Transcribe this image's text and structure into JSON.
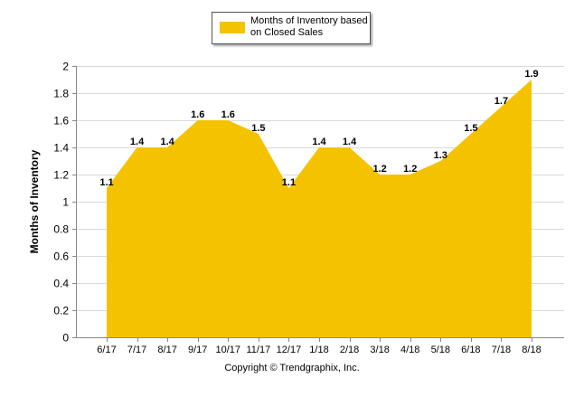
{
  "chart_data": {
    "type": "area",
    "categories": [
      "6/17",
      "7/17",
      "8/17",
      "9/17",
      "10/17",
      "11/17",
      "12/17",
      "1/18",
      "2/18",
      "3/18",
      "4/18",
      "5/18",
      "6/18",
      "7/18",
      "8/18"
    ],
    "series": [
      {
        "name": "Months of Inventory based on Closed Sales",
        "values": [
          1.1,
          1.4,
          1.4,
          1.6,
          1.6,
          1.5,
          1.1,
          1.4,
          1.4,
          1.2,
          1.2,
          1.3,
          1.5,
          1.7,
          1.9
        ],
        "labels": [
          "1.1",
          "1.4",
          "1.4",
          "1.6",
          "1.6",
          "1.5",
          "1.1",
          "1.4",
          "1.4",
          "1.2",
          "1.2",
          "1.3",
          "1.5",
          "1.7",
          "1.9"
        ]
      }
    ],
    "ylabel": "Months of Inventory",
    "xlabel": "",
    "ylim": [
      0,
      2
    ],
    "yticks": [
      "0",
      "0.2",
      "0.4",
      "0.6",
      "0.8",
      "1",
      "1.2",
      "1.4",
      "1.6",
      "1.8",
      "2"
    ],
    "grid": true,
    "legend_position": "top-center"
  },
  "legend": {
    "label": "Months of Inventory based on Closed Sales"
  },
  "colors": {
    "series_fill": "#F5C200",
    "grid": "#D9D9D9",
    "axis": "#888888"
  },
  "footer": {
    "copyright": "Copyright © Trendgraphix, Inc."
  }
}
